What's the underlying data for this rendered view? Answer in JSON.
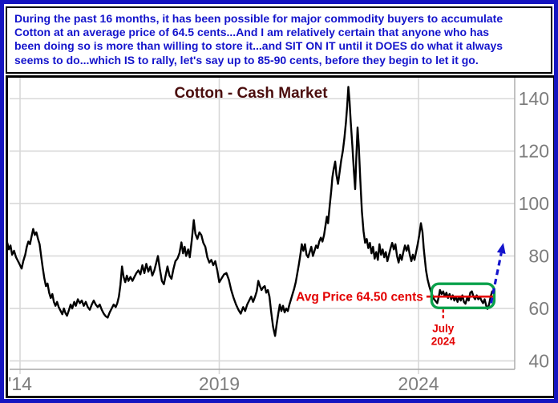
{
  "page": {
    "outer_border_color": "#1515c0",
    "background": "#ffffff"
  },
  "commentary": {
    "text_color": "#1414cc",
    "lines": [
      "During the past 16 months, it has been possible for major commodity buyers to accumulate",
      "Cotton at an average price of 64.5 cents...And I am relatively certain that anyone who has",
      "been doing so is more than willing to store it...and SIT ON IT until it DOES do what it always",
      "seems to do...which IS to rally, let's say up to 85-90 cents, before they begin to let it go."
    ]
  },
  "chart_data": {
    "type": "line",
    "title": "Cotton - Cash Market",
    "title_color": "#4a0d0d",
    "line_color": "#000000",
    "gridline_color": "#d8d8d8",
    "frame_line_color": "#a9a9a9",
    "axis_label_color": "#7d7d7d",
    "grid": true,
    "legend": "none",
    "x_axis": {
      "ticks": [
        {
          "year": 2014,
          "label": "'14"
        },
        {
          "year": 2019,
          "label": "2019"
        },
        {
          "year": 2024,
          "label": "2024"
        }
      ],
      "range_years": [
        2013.68,
        2026.5
      ]
    },
    "y_axis": {
      "side": "right",
      "ticks": [
        40,
        60,
        80,
        100,
        120,
        140
      ],
      "range": [
        37,
        148
      ],
      "units": "cents per lb"
    },
    "series": [
      {
        "name": "Cotton cash price",
        "points": [
          [
            2013.68,
            85
          ],
          [
            2013.72,
            82.5
          ],
          [
            2013.76,
            84
          ],
          [
            2013.8,
            80.5
          ],
          [
            2013.85,
            82
          ],
          [
            2013.9,
            79.5
          ],
          [
            2013.95,
            78
          ],
          [
            2014.0,
            76.5
          ],
          [
            2014.04,
            75.2
          ],
          [
            2014.08,
            78
          ],
          [
            2014.13,
            80.5
          ],
          [
            2014.17,
            83.5
          ],
          [
            2014.21,
            85.5
          ],
          [
            2014.25,
            84.5
          ],
          [
            2014.29,
            87.5
          ],
          [
            2014.33,
            90.3
          ],
          [
            2014.37,
            88
          ],
          [
            2014.41,
            89
          ],
          [
            2014.45,
            86.5
          ],
          [
            2014.49,
            84.5
          ],
          [
            2014.53,
            80
          ],
          [
            2014.57,
            75.5
          ],
          [
            2014.61,
            71.5
          ],
          [
            2014.65,
            68.5
          ],
          [
            2014.69,
            69.5
          ],
          [
            2014.73,
            66
          ],
          [
            2014.77,
            64
          ],
          [
            2014.81,
            65.5
          ],
          [
            2014.85,
            62.5
          ],
          [
            2014.89,
            61
          ],
          [
            2014.93,
            62.5
          ],
          [
            2014.97,
            60.5
          ],
          [
            2015.02,
            59
          ],
          [
            2015.06,
            57.8
          ],
          [
            2015.1,
            60
          ],
          [
            2015.14,
            58.2
          ],
          [
            2015.18,
            57.2
          ],
          [
            2015.23,
            59.5
          ],
          [
            2015.27,
            61.5
          ],
          [
            2015.31,
            60
          ],
          [
            2015.36,
            62.5
          ],
          [
            2015.4,
            61
          ],
          [
            2015.45,
            63.5
          ],
          [
            2015.5,
            62
          ],
          [
            2015.55,
            63
          ],
          [
            2015.6,
            61
          ],
          [
            2015.65,
            62.5
          ],
          [
            2015.7,
            60.5
          ],
          [
            2015.75,
            59.5
          ],
          [
            2015.8,
            61.5
          ],
          [
            2015.85,
            63
          ],
          [
            2015.9,
            61.5
          ],
          [
            2015.95,
            60.5
          ],
          [
            2016.0,
            61.5
          ],
          [
            2016.05,
            59.5
          ],
          [
            2016.1,
            58
          ],
          [
            2016.15,
            57
          ],
          [
            2016.2,
            56.5
          ],
          [
            2016.25,
            58.5
          ],
          [
            2016.3,
            60
          ],
          [
            2016.35,
            61.5
          ],
          [
            2016.4,
            60.5
          ],
          [
            2016.44,
            62
          ],
          [
            2016.48,
            64.5
          ],
          [
            2016.52,
            69
          ],
          [
            2016.56,
            76
          ],
          [
            2016.6,
            72
          ],
          [
            2016.64,
            70
          ],
          [
            2016.68,
            72.5
          ],
          [
            2016.72,
            70.5
          ],
          [
            2016.77,
            72
          ],
          [
            2016.82,
            70.5
          ],
          [
            2016.87,
            72
          ],
          [
            2016.92,
            73.5
          ],
          [
            2016.97,
            74.5
          ],
          [
            2017.02,
            73
          ],
          [
            2017.07,
            76.5
          ],
          [
            2017.12,
            73.5
          ],
          [
            2017.17,
            77
          ],
          [
            2017.22,
            74
          ],
          [
            2017.27,
            76
          ],
          [
            2017.32,
            72.5
          ],
          [
            2017.37,
            74.5
          ],
          [
            2017.42,
            77.5
          ],
          [
            2017.46,
            80
          ],
          [
            2017.51,
            75
          ],
          [
            2017.56,
            70.5
          ],
          [
            2017.61,
            69.2
          ],
          [
            2017.66,
            73
          ],
          [
            2017.7,
            76
          ],
          [
            2017.75,
            72.5
          ],
          [
            2017.8,
            71.3
          ],
          [
            2017.85,
            75
          ],
          [
            2017.9,
            78
          ],
          [
            2017.95,
            79
          ],
          [
            2018.0,
            81
          ],
          [
            2018.05,
            85.2
          ],
          [
            2018.09,
            81
          ],
          [
            2018.13,
            83.5
          ],
          [
            2018.17,
            80
          ],
          [
            2018.22,
            82.5
          ],
          [
            2018.26,
            79.5
          ],
          [
            2018.31,
            86
          ],
          [
            2018.36,
            93.7
          ],
          [
            2018.4,
            88.5
          ],
          [
            2018.45,
            86.5
          ],
          [
            2018.5,
            89
          ],
          [
            2018.55,
            88
          ],
          [
            2018.6,
            85
          ],
          [
            2018.65,
            83.5
          ],
          [
            2018.7,
            79.5
          ],
          [
            2018.75,
            77.5
          ],
          [
            2018.8,
            78.5
          ],
          [
            2018.85,
            76.5
          ],
          [
            2018.9,
            78
          ],
          [
            2018.95,
            74.5
          ],
          [
            2019.0,
            70
          ],
          [
            2019.06,
            71.5
          ],
          [
            2019.12,
            73
          ],
          [
            2019.18,
            73.5
          ],
          [
            2019.24,
            71
          ],
          [
            2019.3,
            67
          ],
          [
            2019.36,
            64
          ],
          [
            2019.42,
            61.5
          ],
          [
            2019.48,
            59.5
          ],
          [
            2019.54,
            58
          ],
          [
            2019.6,
            60.5
          ],
          [
            2019.65,
            59
          ],
          [
            2019.7,
            61.5
          ],
          [
            2019.75,
            63
          ],
          [
            2019.8,
            64.5
          ],
          [
            2019.85,
            62.5
          ],
          [
            2019.9,
            64.5
          ],
          [
            2019.94,
            66.5
          ],
          [
            2019.98,
            70.5
          ],
          [
            2020.02,
            68.5
          ],
          [
            2020.06,
            67
          ],
          [
            2020.1,
            68
          ],
          [
            2020.14,
            68.5
          ],
          [
            2020.18,
            66
          ],
          [
            2020.22,
            67
          ],
          [
            2020.26,
            64.5
          ],
          [
            2020.3,
            59
          ],
          [
            2020.35,
            53
          ],
          [
            2020.4,
            49.5
          ],
          [
            2020.44,
            54
          ],
          [
            2020.48,
            58
          ],
          [
            2020.52,
            61.5
          ],
          [
            2020.56,
            59
          ],
          [
            2020.6,
            61
          ],
          [
            2020.64,
            58.5
          ],
          [
            2020.68,
            60
          ],
          [
            2020.72,
            59
          ],
          [
            2020.76,
            61.5
          ],
          [
            2020.8,
            63.5
          ],
          [
            2020.84,
            65.5
          ],
          [
            2020.88,
            67.5
          ],
          [
            2020.92,
            70
          ],
          [
            2020.96,
            73.5
          ],
          [
            2021.0,
            77
          ],
          [
            2021.04,
            81
          ],
          [
            2021.07,
            84.5
          ],
          [
            2021.11,
            82
          ],
          [
            2021.15,
            84.5
          ],
          [
            2021.19,
            80.5
          ],
          [
            2021.23,
            79.5
          ],
          [
            2021.27,
            81.5
          ],
          [
            2021.31,
            83.5
          ],
          [
            2021.35,
            80
          ],
          [
            2021.39,
            82
          ],
          [
            2021.43,
            84
          ],
          [
            2021.47,
            83
          ],
          [
            2021.51,
            85.5
          ],
          [
            2021.55,
            87
          ],
          [
            2021.59,
            85.5
          ],
          [
            2021.63,
            88
          ],
          [
            2021.67,
            92
          ],
          [
            2021.7,
            95
          ],
          [
            2021.73,
            92.5
          ],
          [
            2021.77,
            99
          ],
          [
            2021.81,
            105
          ],
          [
            2021.84,
            110
          ],
          [
            2021.87,
            113
          ],
          [
            2021.91,
            116
          ],
          [
            2021.94,
            111
          ],
          [
            2021.98,
            107.5
          ],
          [
            2022.02,
            112
          ],
          [
            2022.06,
            116.5
          ],
          [
            2022.1,
            120
          ],
          [
            2022.14,
            125
          ],
          [
            2022.18,
            131
          ],
          [
            2022.21,
            137
          ],
          [
            2022.24,
            144.5
          ],
          [
            2022.27,
            139
          ],
          [
            2022.3,
            131
          ],
          [
            2022.34,
            122
          ],
          [
            2022.38,
            112
          ],
          [
            2022.41,
            105.5
          ],
          [
            2022.44,
            118
          ],
          [
            2022.47,
            129
          ],
          [
            2022.5,
            122
          ],
          [
            2022.54,
            109
          ],
          [
            2022.58,
            97
          ],
          [
            2022.62,
            89.5
          ],
          [
            2022.66,
            85
          ],
          [
            2022.7,
            86.5
          ],
          [
            2022.74,
            83
          ],
          [
            2022.78,
            85
          ],
          [
            2022.82,
            81
          ],
          [
            2022.86,
            83.5
          ],
          [
            2022.9,
            79
          ],
          [
            2022.94,
            81.5
          ],
          [
            2022.98,
            78.5
          ],
          [
            2023.02,
            84.5
          ],
          [
            2023.06,
            80.5
          ],
          [
            2023.1,
            82.5
          ],
          [
            2023.14,
            79.5
          ],
          [
            2023.18,
            81.5
          ],
          [
            2023.22,
            78
          ],
          [
            2023.26,
            80.5
          ],
          [
            2023.3,
            83
          ],
          [
            2023.34,
            85
          ],
          [
            2023.38,
            82.5
          ],
          [
            2023.42,
            84.5
          ],
          [
            2023.46,
            80
          ],
          [
            2023.5,
            77.5
          ],
          [
            2023.54,
            80.5
          ],
          [
            2023.58,
            78.5
          ],
          [
            2023.62,
            81.5
          ],
          [
            2023.66,
            84
          ],
          [
            2023.7,
            82
          ],
          [
            2023.74,
            84
          ],
          [
            2023.78,
            80.5
          ],
          [
            2023.82,
            78
          ],
          [
            2023.86,
            80.5
          ],
          [
            2023.9,
            78.5
          ],
          [
            2023.94,
            81.5
          ],
          [
            2023.98,
            84.5
          ],
          [
            2024.02,
            88
          ],
          [
            2024.06,
            92.5
          ],
          [
            2024.1,
            89
          ],
          [
            2024.13,
            83
          ],
          [
            2024.16,
            78.5
          ],
          [
            2024.19,
            74.5
          ],
          [
            2024.23,
            71
          ],
          [
            2024.27,
            68.5
          ],
          [
            2024.31,
            66.5
          ],
          [
            2024.35,
            65
          ],
          [
            2024.39,
            63.5
          ],
          [
            2024.43,
            62.8
          ],
          [
            2024.47,
            62
          ],
          [
            2024.51,
            64.5
          ],
          [
            2024.54,
            67
          ],
          [
            2024.58,
            65.5
          ],
          [
            2024.62,
            66.5
          ],
          [
            2024.66,
            64.5
          ],
          [
            2024.7,
            66
          ],
          [
            2024.74,
            64
          ],
          [
            2024.78,
            65.5
          ],
          [
            2024.82,
            63.5
          ],
          [
            2024.86,
            65
          ],
          [
            2024.9,
            63
          ],
          [
            2024.94,
            64.5
          ],
          [
            2024.98,
            62.5
          ],
          [
            2025.02,
            64.5
          ],
          [
            2025.06,
            63
          ],
          [
            2025.1,
            65
          ],
          [
            2025.14,
            62.5
          ],
          [
            2025.18,
            61.8
          ],
          [
            2025.22,
            64
          ],
          [
            2025.26,
            63
          ],
          [
            2025.3,
            66
          ],
          [
            2025.34,
            66.5
          ],
          [
            2025.38,
            64.5
          ],
          [
            2025.42,
            63.5
          ],
          [
            2025.46,
            65
          ],
          [
            2025.5,
            63.5
          ],
          [
            2025.54,
            64.5
          ],
          [
            2025.58,
            63
          ],
          [
            2025.62,
            62
          ],
          [
            2025.66,
            63.5
          ],
          [
            2025.7,
            61
          ],
          [
            2025.73,
            59.8
          ],
          [
            2025.77,
            61.5
          ],
          [
            2025.81,
            64.5
          ],
          [
            2025.85,
            66.5
          ]
        ]
      }
    ],
    "annotations": {
      "avg_price_line": {
        "label": "Avg Price 64.50 cents",
        "price": 64.5,
        "year_start": 2024.2,
        "year_end": 2025.88,
        "color": "#e30000"
      },
      "accumulation_box": {
        "year_start": 2024.33,
        "year_end": 2025.9,
        "price_low": 60.2,
        "price_high": 69.4,
        "color": "#0aa14b"
      },
      "july_2024_marker": {
        "lines": [
          "July",
          "2024"
        ],
        "year": 2024.62,
        "color": "#e30000"
      },
      "projection_arrow": {
        "from_year": 2025.82,
        "from_price": 62,
        "to_year": 2026.13,
        "to_price": 85,
        "color": "#1414cc"
      }
    }
  }
}
